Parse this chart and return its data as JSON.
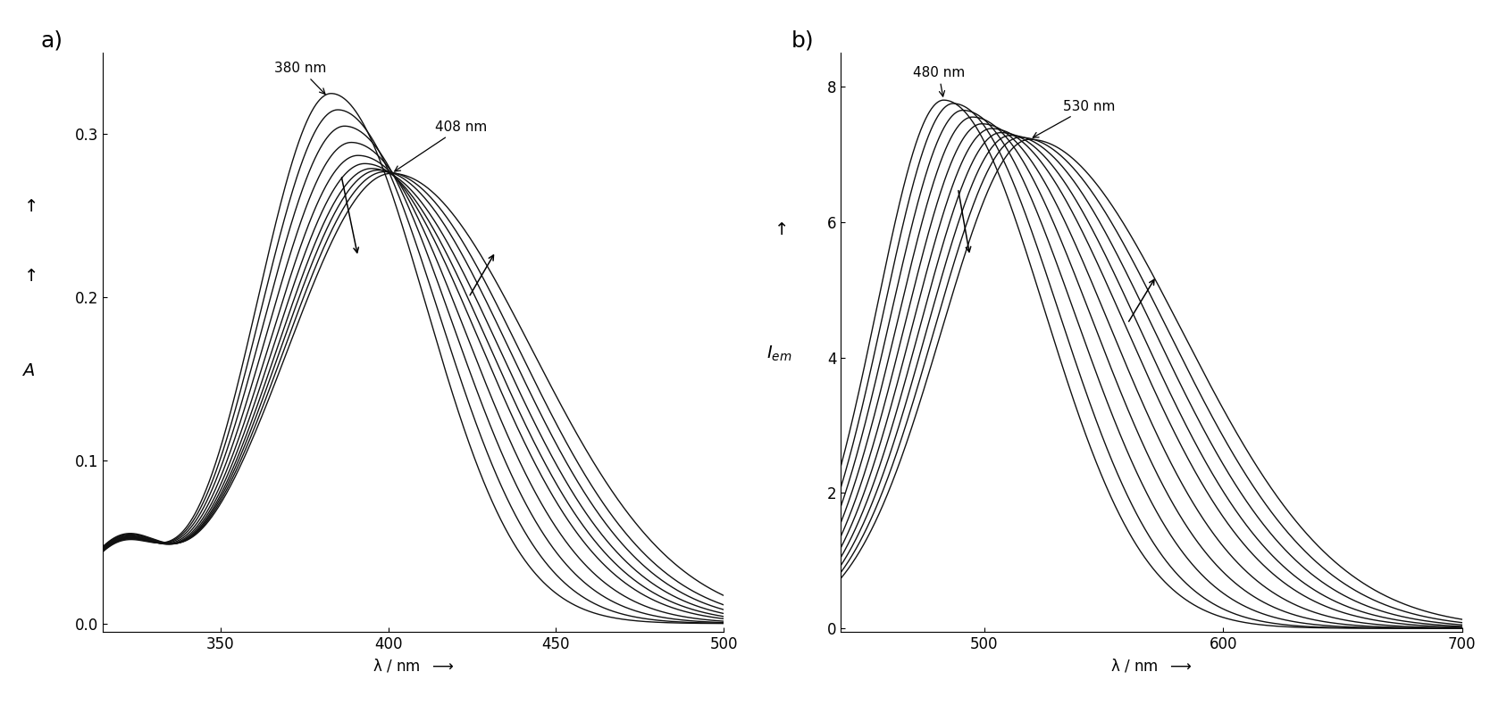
{
  "panel_a": {
    "title": "a)",
    "xlabel": "λ / nm",
    "ylabel": "A",
    "xlim": [
      315,
      500
    ],
    "ylim": [
      -0.005,
      0.35
    ],
    "xticks": [
      350,
      400,
      450,
      500
    ],
    "yticks": [
      0.0,
      0.1,
      0.2,
      0.3
    ],
    "n_curves": 10,
    "centers": [
      383,
      385,
      387,
      389,
      391,
      393,
      395,
      397,
      399,
      401
    ],
    "widths_left": [
      22,
      23,
      24,
      25,
      26,
      27,
      28,
      29,
      30,
      31
    ],
    "widths_right": [
      28,
      30,
      32,
      34,
      36,
      37,
      38,
      39,
      40,
      42
    ],
    "amps": [
      0.325,
      0.315,
      0.305,
      0.295,
      0.287,
      0.282,
      0.279,
      0.278,
      0.277,
      0.276
    ],
    "baseline": 0.045,
    "baseline_x": 320
  },
  "panel_b": {
    "title": "b)",
    "xlabel": "λ / nm",
    "ylabel": "I_em",
    "xlim": [
      440,
      700
    ],
    "ylim": [
      -0.05,
      8.5
    ],
    "xticks": [
      500,
      600,
      700
    ],
    "yticks": [
      0,
      2,
      4,
      6,
      8
    ],
    "n_curves": 10,
    "centers": [
      483,
      487,
      491,
      495,
      499,
      503,
      507,
      511,
      515,
      519
    ],
    "widths_left": [
      28,
      29,
      30,
      31,
      32,
      33,
      34,
      35,
      36,
      37
    ],
    "widths_right": [
      42,
      44,
      47,
      50,
      53,
      56,
      58,
      60,
      62,
      64
    ],
    "amps": [
      7.8,
      7.75,
      7.65,
      7.55,
      7.45,
      7.38,
      7.32,
      7.28,
      7.25,
      7.22
    ],
    "baseline": 0.0,
    "baseline_x": 448
  },
  "background_color": "#ffffff",
  "line_color": "#111111",
  "line_width": 1.0,
  "font_size": 12
}
